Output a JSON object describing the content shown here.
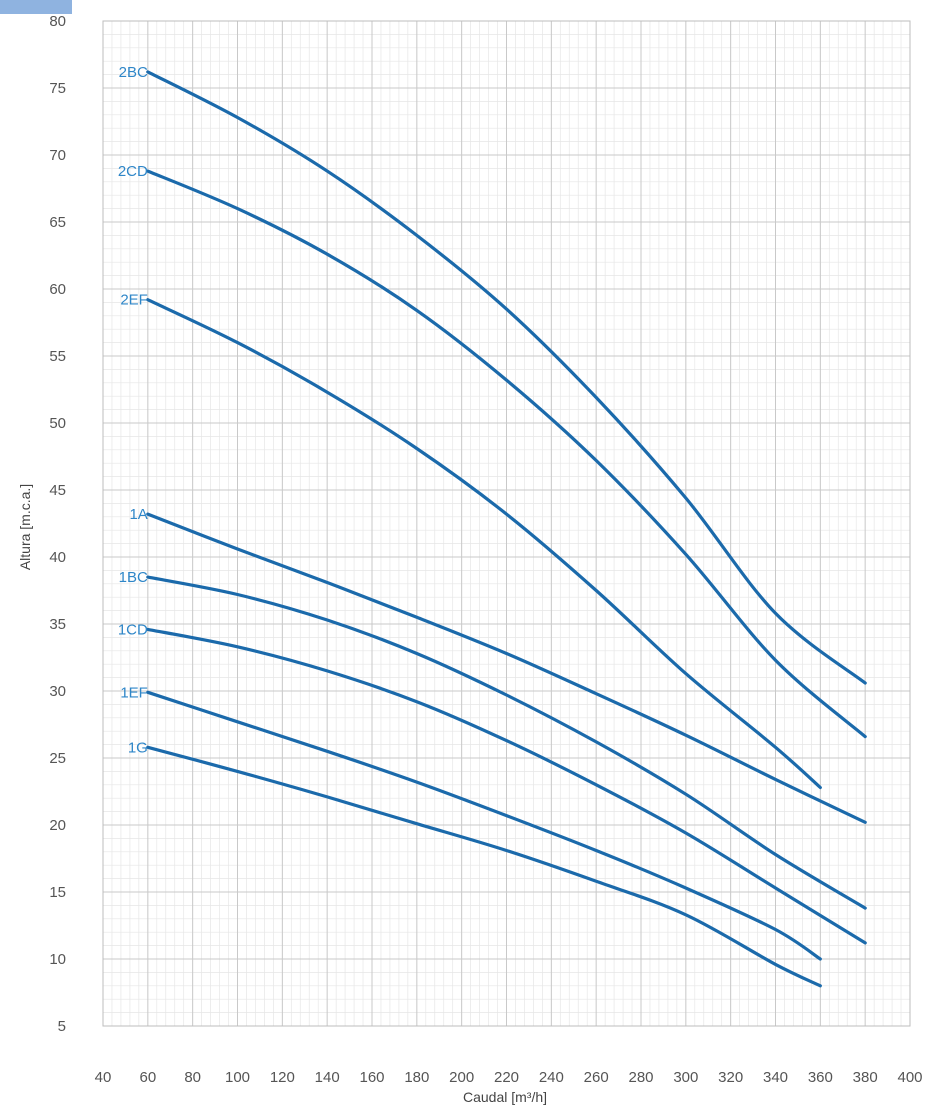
{
  "colors": {
    "curve": "#1b6aab",
    "curve_label": "#2e86c8",
    "grid_major": "#c9c9c9",
    "grid_minor": "#e6e6e6",
    "tick_text": "#555555",
    "corner_tab": "#8fb3e0"
  },
  "chart_data": {
    "type": "line",
    "title": "",
    "xlabel": "Caudal [m³/h]",
    "ylabel": "Altura [m.c.a.]",
    "xlim": [
      40,
      400
    ],
    "ylim": [
      5,
      80
    ],
    "xticks": [
      40,
      60,
      80,
      100,
      120,
      140,
      160,
      180,
      200,
      220,
      240,
      260,
      280,
      300,
      320,
      340,
      360,
      380,
      400
    ],
    "yticks": [
      5,
      10,
      15,
      20,
      25,
      30,
      35,
      40,
      45,
      50,
      55,
      60,
      65,
      70,
      75,
      80
    ],
    "grid": true,
    "legend": "labels at curve start",
    "series": [
      {
        "name": "2BC",
        "x": [
          60,
          100,
          140,
          180,
          220,
          260,
          300,
          340,
          380
        ],
        "y": [
          76.2,
          72.8,
          68.8,
          64.0,
          58.5,
          51.9,
          44.4,
          35.8,
          30.6
        ]
      },
      {
        "name": "2CD",
        "x": [
          60,
          100,
          140,
          180,
          220,
          260,
          300,
          340,
          380
        ],
        "y": [
          68.8,
          66.0,
          62.6,
          58.4,
          53.2,
          47.2,
          40.2,
          32.3,
          26.6
        ]
      },
      {
        "name": "2EF",
        "x": [
          60,
          100,
          140,
          180,
          220,
          260,
          300,
          340,
          360
        ],
        "y": [
          59.2,
          56.0,
          52.3,
          48.1,
          43.2,
          37.5,
          31.3,
          25.8,
          22.8
        ]
      },
      {
        "name": "1A",
        "x": [
          60,
          100,
          140,
          180,
          220,
          260,
          300,
          340,
          380
        ],
        "y": [
          43.2,
          40.6,
          38.1,
          35.5,
          32.8,
          29.8,
          26.7,
          23.4,
          20.2
        ]
      },
      {
        "name": "1BC",
        "x": [
          60,
          100,
          140,
          180,
          220,
          260,
          300,
          340,
          380
        ],
        "y": [
          38.5,
          37.2,
          35.3,
          32.8,
          29.7,
          26.2,
          22.3,
          17.8,
          13.8
        ]
      },
      {
        "name": "1CD",
        "x": [
          60,
          100,
          140,
          180,
          220,
          260,
          300,
          340,
          380
        ],
        "y": [
          34.6,
          33.3,
          31.5,
          29.2,
          26.3,
          23.0,
          19.4,
          15.3,
          11.2
        ]
      },
      {
        "name": "1EF",
        "x": [
          60,
          100,
          140,
          180,
          220,
          260,
          300,
          340,
          360
        ],
        "y": [
          29.9,
          27.7,
          25.5,
          23.2,
          20.7,
          18.1,
          15.3,
          12.2,
          10.0
        ]
      },
      {
        "name": "1G",
        "x": [
          60,
          100,
          140,
          180,
          220,
          260,
          300,
          340,
          360
        ],
        "y": [
          25.8,
          24.0,
          22.1,
          20.1,
          18.1,
          15.8,
          13.3,
          9.6,
          8.0
        ]
      }
    ]
  }
}
